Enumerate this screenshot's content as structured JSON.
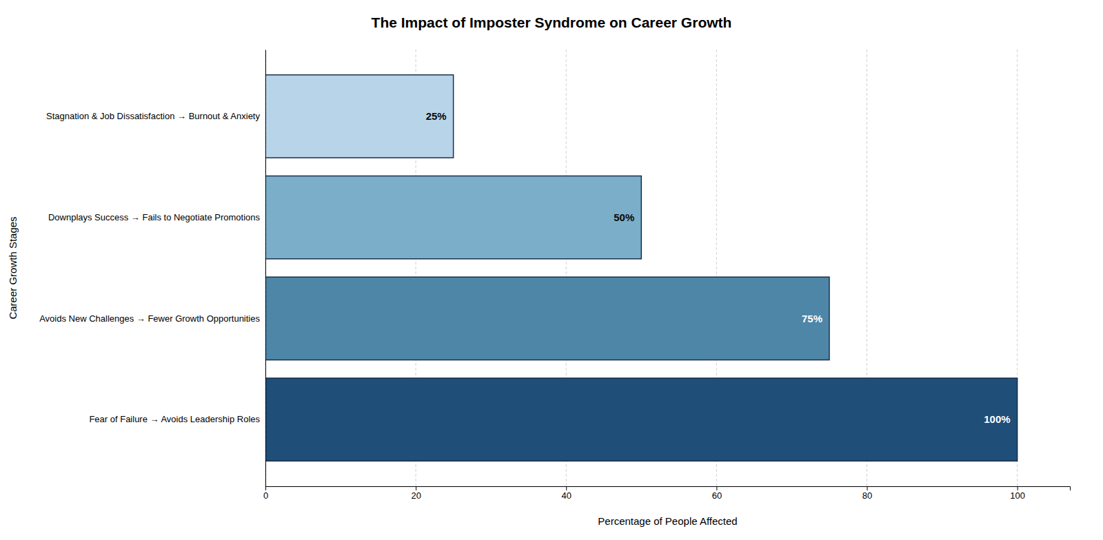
{
  "chart_data": {
    "type": "bar",
    "orientation": "horizontal",
    "title": "The Impact of Imposter Syndrome on Career Growth",
    "xlabel": "Percentage of People Affected",
    "ylabel": "Career Growth Stages",
    "categories": [
      "Fear of Failure → Avoids Leadership Roles",
      "Avoids New Challenges → Fewer Growth Opportunities",
      "Downplays Success → Fails to Negotiate Promotions",
      "Stagnation & Job Dissatisfaction → Burnout & Anxiety"
    ],
    "values": [
      100,
      75,
      50,
      25
    ],
    "value_labels": [
      "100%",
      "75%",
      "50%",
      "25%"
    ],
    "data_labels": true,
    "colors": [
      "#1f4e79",
      "#4e86a8",
      "#7baec8",
      "#b8d4e8"
    ],
    "xlim": [
      0,
      107
    ],
    "xticks": [
      0,
      20,
      40,
      60,
      80,
      100
    ],
    "grid": true
  }
}
